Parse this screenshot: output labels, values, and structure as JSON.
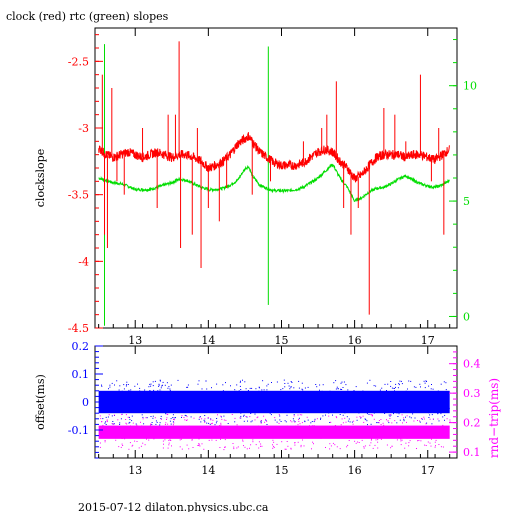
{
  "title": "clock (red) rtc (green) slopes",
  "footer": "2015-07-12 dilaton.physics.ubc.ca",
  "colors": {
    "clock": "#ff0000",
    "rtc": "#00dd00",
    "offset": "#0000ff",
    "rndtrip": "#ff00ff",
    "axis": "#000000"
  },
  "chart_data": [
    {
      "type": "line",
      "title": "clock (red) rtc (green) slopes",
      "ylabel": "clockslope",
      "xlim": [
        12.45,
        17.4
      ],
      "ylim": [
        -4.5,
        -2.25
      ],
      "x_ticks": [
        13,
        14,
        15,
        16,
        17
      ],
      "y_ticks": [
        -2.5,
        -3,
        -3.5,
        -4,
        -4.5
      ],
      "y_tick_labels": [
        "-2.5",
        "-3",
        "-3.5",
        "-4",
        "-4.5"
      ],
      "y2lim": [
        -0.5,
        12.5
      ],
      "y2_ticks": [
        0,
        5,
        10
      ],
      "series": [
        {
          "name": "clock",
          "axis": "left",
          "x": [
            12.5,
            12.6,
            12.7,
            12.8,
            12.9,
            13.0,
            13.1,
            13.2,
            13.3,
            13.4,
            13.5,
            13.6,
            13.7,
            13.8,
            13.9,
            14.0,
            14.1,
            14.2,
            14.3,
            14.4,
            14.5,
            14.55,
            14.6,
            14.7,
            14.8,
            14.9,
            15.0,
            15.1,
            15.2,
            15.3,
            15.4,
            15.5,
            15.6,
            15.7,
            15.8,
            15.9,
            16.0,
            16.1,
            16.2,
            16.3,
            16.4,
            16.5,
            16.6,
            16.7,
            16.8,
            16.9,
            17.0,
            17.1,
            17.2,
            17.3
          ],
          "y": [
            -3.15,
            -3.2,
            -3.22,
            -3.2,
            -3.18,
            -3.2,
            -3.22,
            -3.2,
            -3.18,
            -3.2,
            -3.22,
            -3.2,
            -3.2,
            -3.22,
            -3.25,
            -3.3,
            -3.28,
            -3.25,
            -3.2,
            -3.12,
            -3.08,
            -3.06,
            -3.1,
            -3.18,
            -3.22,
            -3.26,
            -3.28,
            -3.28,
            -3.28,
            -3.26,
            -3.22,
            -3.18,
            -3.16,
            -3.18,
            -3.25,
            -3.3,
            -3.38,
            -3.35,
            -3.28,
            -3.22,
            -3.2,
            -3.2,
            -3.2,
            -3.22,
            -3.2,
            -3.2,
            -3.22,
            -3.24,
            -3.2,
            -3.16
          ]
        },
        {
          "name": "rtc",
          "axis": "right",
          "x": [
            12.5,
            12.6,
            12.7,
            12.8,
            12.9,
            13.0,
            13.1,
            13.2,
            13.3,
            13.4,
            13.5,
            13.6,
            13.7,
            13.8,
            13.9,
            14.0,
            14.1,
            14.2,
            14.3,
            14.4,
            14.5,
            14.55,
            14.6,
            14.7,
            14.8,
            14.9,
            15.0,
            15.1,
            15.2,
            15.3,
            15.4,
            15.5,
            15.6,
            15.7,
            15.8,
            15.9,
            16.0,
            16.1,
            16.2,
            16.3,
            16.4,
            16.5,
            16.6,
            16.7,
            16.8,
            16.9,
            17.0,
            17.1,
            17.2,
            17.3
          ],
          "y": [
            6.0,
            5.9,
            5.8,
            5.75,
            5.65,
            5.5,
            5.5,
            5.5,
            5.6,
            5.7,
            5.8,
            5.95,
            5.9,
            5.75,
            5.6,
            5.5,
            5.5,
            5.55,
            5.7,
            5.9,
            6.4,
            6.5,
            6.1,
            5.7,
            5.55,
            5.45,
            5.45,
            5.45,
            5.5,
            5.6,
            5.8,
            6.0,
            6.3,
            6.6,
            6.0,
            5.6,
            5.0,
            5.15,
            5.4,
            5.55,
            5.6,
            5.75,
            5.95,
            6.1,
            5.9,
            5.75,
            5.65,
            5.6,
            5.7,
            5.9
          ]
        }
      ]
    },
    {
      "type": "scatter",
      "ylabel": "offset(ms)",
      "y2label": "rnd−trip(ms)",
      "xlim": [
        12.45,
        17.4
      ],
      "ylim": [
        -0.2,
        0.2
      ],
      "x_ticks": [
        13,
        14,
        15,
        16,
        17
      ],
      "y_ticks": [
        0.2,
        0.1,
        0,
        -0.1
      ],
      "y2lim": [
        0.08,
        0.46
      ],
      "y2_ticks": [
        0.4,
        0.3,
        0.2,
        0.1
      ],
      "series": [
        {
          "name": "offset",
          "axis": "left",
          "center": 0.0,
          "band": [
            -0.04,
            0.04
          ]
        },
        {
          "name": "rnd-trip",
          "axis": "right",
          "center": 0.17,
          "band": [
            0.145,
            0.19
          ]
        }
      ]
    }
  ]
}
